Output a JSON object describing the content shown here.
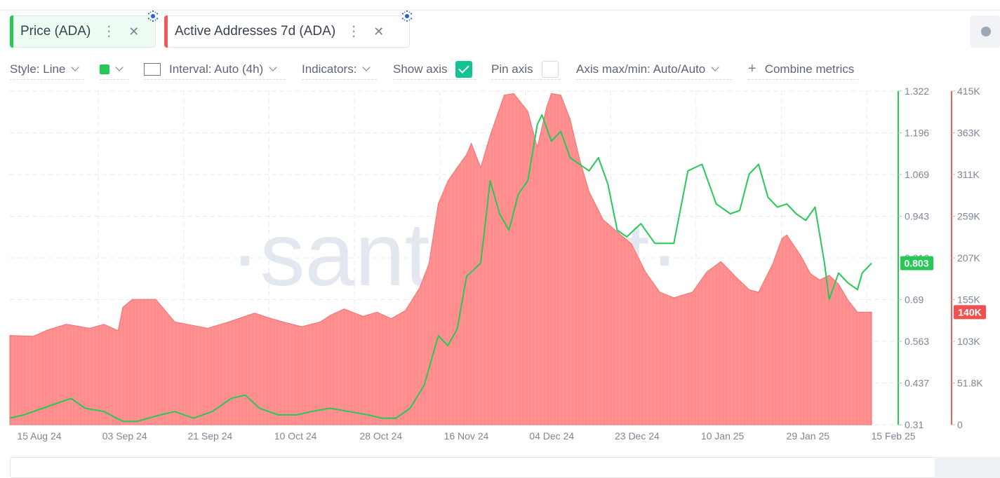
{
  "metrics": [
    {
      "label": "Price (ADA)",
      "color": "#26c955",
      "bg": "#eefbf2"
    },
    {
      "label": "Active Addresses 7d (ADA)",
      "color": "#f25a5a",
      "bg": "#ffffff"
    }
  ],
  "metric_menu_icon": "more-vertical-icon",
  "metric_close_icon": "close-icon",
  "toolbar": {
    "style": "Style: Line",
    "interval": "Interval: Auto (4h)",
    "indicators": "Indicators:",
    "show_axis": "Show axis",
    "pin_axis": "Pin axis",
    "axis_maxmin": "Axis max/min: Auto/Auto",
    "combine": "Combine metrics",
    "swatch_color": "#26c955",
    "show_axis_checked": true,
    "pin_axis_checked": false
  },
  "watermark": "·santiment·",
  "chart_data": {
    "type": "line",
    "x_tick_labels": [
      "15 Aug 24",
      "03 Sep 24",
      "21 Sep 24",
      "10 Oct 24",
      "28 Oct 24",
      "16 Nov 24",
      "04 Dec 24",
      "23 Dec 24",
      "10 Jan 25",
      "29 Jan 25",
      "15 Feb 25"
    ],
    "x_range": [
      "2024-08-13",
      "2025-02-12"
    ],
    "series": [
      {
        "name": "Price (ADA)",
        "color": "#26c955",
        "axis": "left",
        "ylim": [
          0.31,
          1.322
        ],
        "tick_labels": [
          "0.31",
          "0.437",
          "0.563",
          "0.69",
          "0.816",
          "0.943",
          "1.069",
          "1.196",
          "1.322"
        ],
        "current_label": "0.803",
        "points": [
          [
            "2024-08-13",
            0.33
          ],
          [
            "2024-08-16",
            0.34
          ],
          [
            "2024-08-20",
            0.36
          ],
          [
            "2024-08-24",
            0.38
          ],
          [
            "2024-08-26",
            0.39
          ],
          [
            "2024-08-29",
            0.36
          ],
          [
            "2024-09-02",
            0.35
          ],
          [
            "2024-09-06",
            0.32
          ],
          [
            "2024-09-09",
            0.32
          ],
          [
            "2024-09-14",
            0.34
          ],
          [
            "2024-09-17",
            0.35
          ],
          [
            "2024-09-21",
            0.33
          ],
          [
            "2024-09-25",
            0.35
          ],
          [
            "2024-09-29",
            0.39
          ],
          [
            "2024-10-02",
            0.4
          ],
          [
            "2024-10-05",
            0.36
          ],
          [
            "2024-10-09",
            0.34
          ],
          [
            "2024-10-13",
            0.34
          ],
          [
            "2024-10-16",
            0.35
          ],
          [
            "2024-10-20",
            0.36
          ],
          [
            "2024-10-24",
            0.35
          ],
          [
            "2024-10-28",
            0.34
          ],
          [
            "2024-10-31",
            0.33
          ],
          [
            "2024-11-03",
            0.33
          ],
          [
            "2024-11-06",
            0.36
          ],
          [
            "2024-11-09",
            0.43
          ],
          [
            "2024-11-12",
            0.58
          ],
          [
            "2024-11-14",
            0.55
          ],
          [
            "2024-11-16",
            0.6
          ],
          [
            "2024-11-18",
            0.76
          ],
          [
            "2024-11-21",
            0.8
          ],
          [
            "2024-11-23",
            1.05
          ],
          [
            "2024-11-25",
            0.95
          ],
          [
            "2024-11-27",
            0.9
          ],
          [
            "2024-11-29",
            1.01
          ],
          [
            "2024-12-01",
            1.05
          ],
          [
            "2024-12-03",
            1.22
          ],
          [
            "2024-12-04",
            1.25
          ],
          [
            "2024-12-06",
            1.17
          ],
          [
            "2024-12-08",
            1.2
          ],
          [
            "2024-12-10",
            1.12
          ],
          [
            "2024-12-12",
            1.1
          ],
          [
            "2024-12-14",
            1.08
          ],
          [
            "2024-12-16",
            1.12
          ],
          [
            "2024-12-18",
            1.04
          ],
          [
            "2024-12-20",
            0.9
          ],
          [
            "2024-12-22",
            0.88
          ],
          [
            "2024-12-25",
            0.92
          ],
          [
            "2024-12-28",
            0.86
          ],
          [
            "2025-01-01",
            0.86
          ],
          [
            "2025-01-04",
            1.08
          ],
          [
            "2025-01-07",
            1.1
          ],
          [
            "2025-01-10",
            0.98
          ],
          [
            "2025-01-13",
            0.95
          ],
          [
            "2025-01-15",
            0.96
          ],
          [
            "2025-01-17",
            1.07
          ],
          [
            "2025-01-19",
            1.1
          ],
          [
            "2025-01-21",
            1.0
          ],
          [
            "2025-01-23",
            0.97
          ],
          [
            "2025-01-25",
            0.98
          ],
          [
            "2025-01-27",
            0.95
          ],
          [
            "2025-01-29",
            0.93
          ],
          [
            "2025-01-31",
            0.97
          ],
          [
            "2025-02-02",
            0.8
          ],
          [
            "2025-02-03",
            0.69
          ],
          [
            "2025-02-05",
            0.77
          ],
          [
            "2025-02-07",
            0.74
          ],
          [
            "2025-02-09",
            0.72
          ],
          [
            "2025-02-10",
            0.77
          ],
          [
            "2025-02-12",
            0.8
          ]
        ]
      },
      {
        "name": "Active Addresses 7d (ADA)",
        "color": "#f25a5a",
        "axis": "right",
        "ylim": [
          0,
          415000
        ],
        "tick_labels": [
          "0",
          "51.8K",
          "103K",
          "155K",
          "207K",
          "259K",
          "311K",
          "363K",
          "415K"
        ],
        "current_label": "140K",
        "points": [
          [
            "2024-08-13",
            111000
          ],
          [
            "2024-08-18",
            110000
          ],
          [
            "2024-08-21",
            118000
          ],
          [
            "2024-08-25",
            125000
          ],
          [
            "2024-08-30",
            120000
          ],
          [
            "2024-09-02",
            125000
          ],
          [
            "2024-09-05",
            117000
          ],
          [
            "2024-09-06",
            146000
          ],
          [
            "2024-09-08",
            156000
          ],
          [
            "2024-09-13",
            156000
          ],
          [
            "2024-09-17",
            128000
          ],
          [
            "2024-09-24",
            120000
          ],
          [
            "2024-09-28",
            127000
          ],
          [
            "2024-10-01",
            133000
          ],
          [
            "2024-10-04",
            139000
          ],
          [
            "2024-10-07",
            133000
          ],
          [
            "2024-10-10",
            128000
          ],
          [
            "2024-10-14",
            122000
          ],
          [
            "2024-10-18",
            128000
          ],
          [
            "2024-10-20",
            136000
          ],
          [
            "2024-10-23",
            144000
          ],
          [
            "2024-10-27",
            135000
          ],
          [
            "2024-10-30",
            140000
          ],
          [
            "2024-11-02",
            132000
          ],
          [
            "2024-11-05",
            142000
          ],
          [
            "2024-11-08",
            170000
          ],
          [
            "2024-11-10",
            200000
          ],
          [
            "2024-11-12",
            275000
          ],
          [
            "2024-11-14",
            303000
          ],
          [
            "2024-11-16",
            320000
          ],
          [
            "2024-11-18",
            336000
          ],
          [
            "2024-11-19",
            350000
          ],
          [
            "2024-11-21",
            320000
          ],
          [
            "2024-11-23",
            360000
          ],
          [
            "2024-11-26",
            410000
          ],
          [
            "2024-11-28",
            412000
          ],
          [
            "2024-12-01",
            390000
          ],
          [
            "2024-12-03",
            345000
          ],
          [
            "2024-12-05",
            395000
          ],
          [
            "2024-12-06",
            412000
          ],
          [
            "2024-12-08",
            410000
          ],
          [
            "2024-12-10",
            380000
          ],
          [
            "2024-12-12",
            330000
          ],
          [
            "2024-12-14",
            290000
          ],
          [
            "2024-12-17",
            255000
          ],
          [
            "2024-12-20",
            240000
          ],
          [
            "2024-12-23",
            225000
          ],
          [
            "2024-12-26",
            190000
          ],
          [
            "2024-12-29",
            165000
          ],
          [
            "2025-01-01",
            158000
          ],
          [
            "2025-01-05",
            165000
          ],
          [
            "2025-01-08",
            190000
          ],
          [
            "2025-01-11",
            203000
          ],
          [
            "2025-01-14",
            185000
          ],
          [
            "2025-01-17",
            168000
          ],
          [
            "2025-01-19",
            165000
          ],
          [
            "2025-01-22",
            200000
          ],
          [
            "2025-01-24",
            232000
          ],
          [
            "2025-01-25",
            236000
          ],
          [
            "2025-01-28",
            210000
          ],
          [
            "2025-01-30",
            188000
          ],
          [
            "2025-02-01",
            180000
          ],
          [
            "2025-02-03",
            186000
          ],
          [
            "2025-02-05",
            175000
          ],
          [
            "2025-02-07",
            155000
          ],
          [
            "2025-02-09",
            140000
          ],
          [
            "2025-02-12",
            140000
          ]
        ]
      }
    ],
    "grid": true
  }
}
